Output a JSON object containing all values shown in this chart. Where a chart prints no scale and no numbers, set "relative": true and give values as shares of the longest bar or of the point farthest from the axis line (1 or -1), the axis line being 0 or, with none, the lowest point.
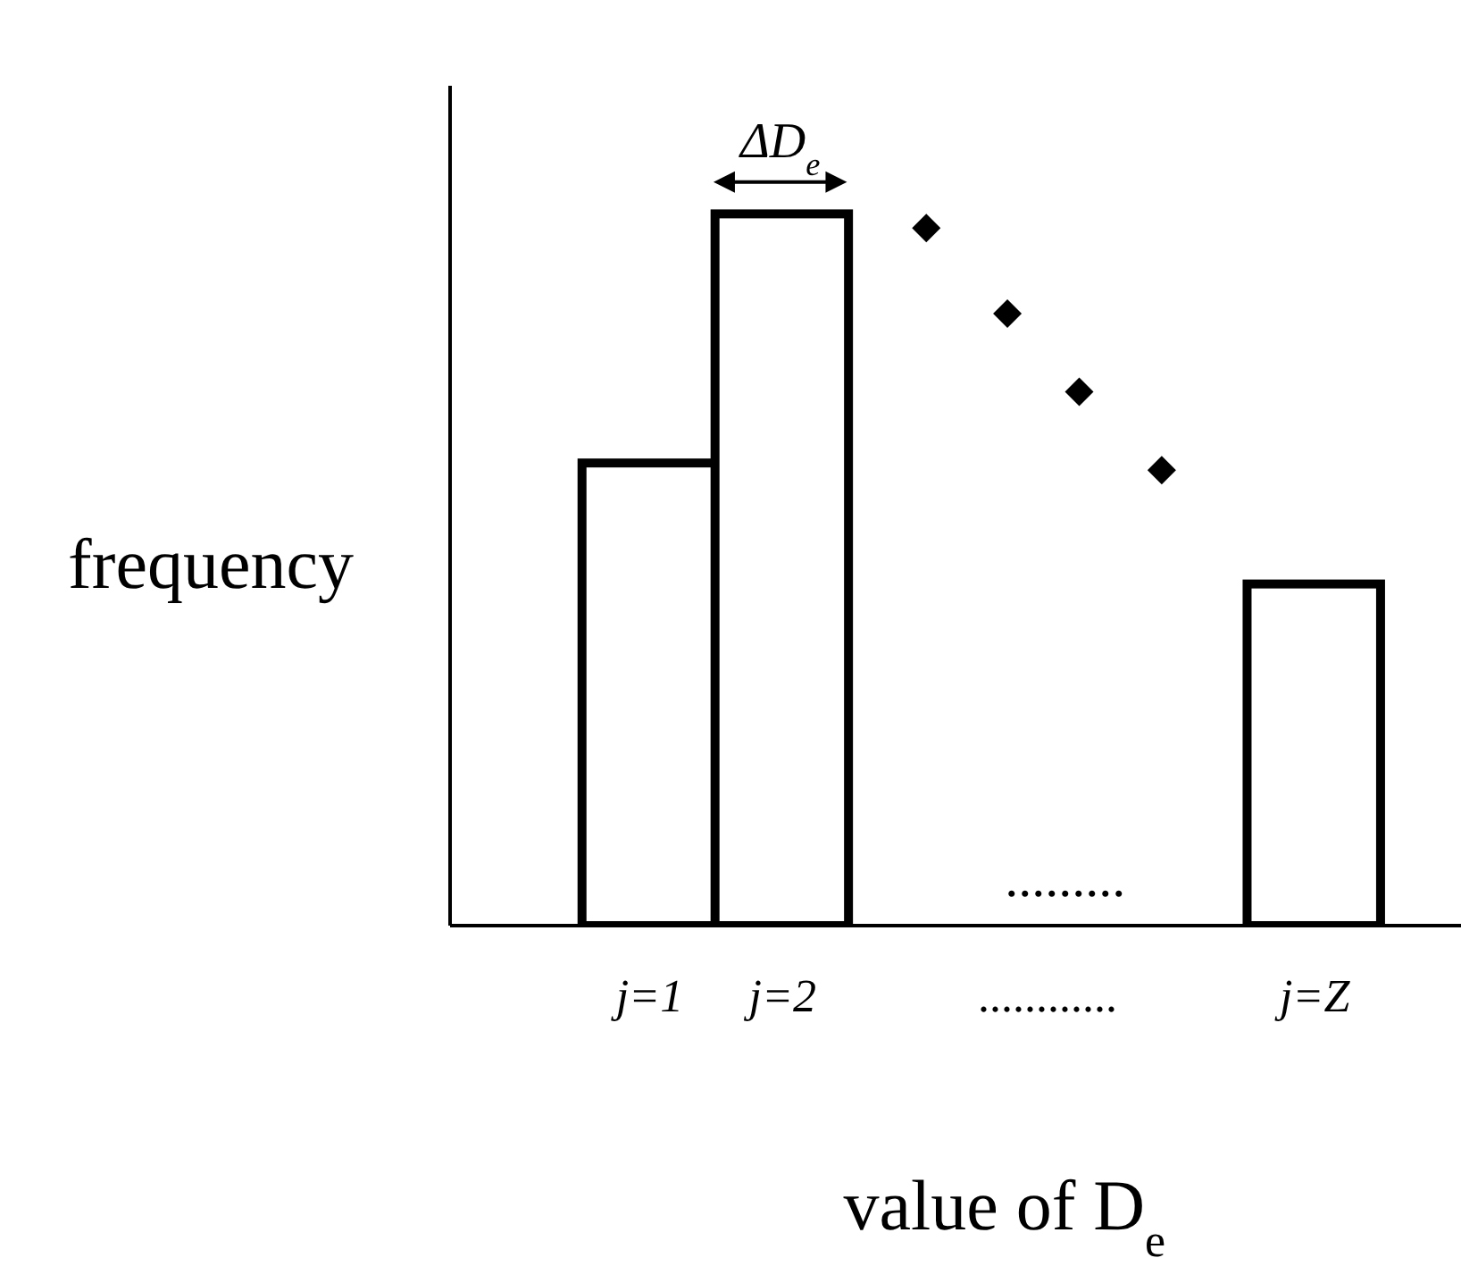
{
  "chart_data": {
    "type": "histogram",
    "relative": true,
    "xlabel": "value of D$_{e}$",
    "ylabel": "frequency",
    "bins": [
      1,
      2,
      3,
      4,
      5,
      6,
      7
    ],
    "xlim": [
      0,
      7.6
    ],
    "xticks": [
      {
        "value": 1.5,
        "label": "j=1"
      },
      {
        "value": 2.5,
        "label": "j=2"
      },
      {
        "value": 4.5,
        "label": "............"
      },
      {
        "value": 6.5,
        "label": "j=Z"
      }
    ],
    "series": [
      {
        "color": "#ffffff",
        "values": [
          0.65,
          1,
          null,
          null,
          null,
          0.48
        ]
      },
      {
        "type": "scatter",
        "color": "#000000",
        "x": [
          3.58,
          4.19,
          4.73,
          5.35
        ],
        "values": [
          0.98,
          0.86,
          0.75,
          0.64
        ]
      }
    ],
    "marker": "diamond",
    "annotations": [
      "ΔD$_{e}$",
      "........."
    ]
  }
}
